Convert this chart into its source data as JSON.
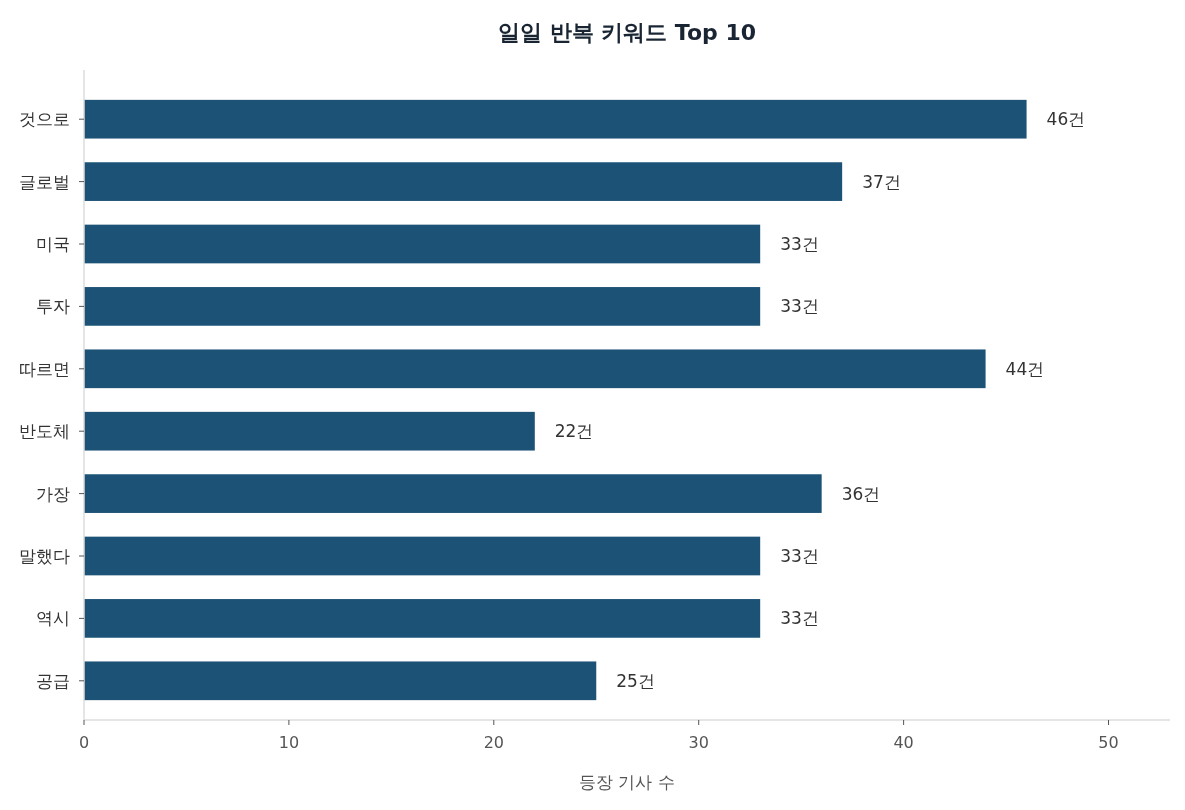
{
  "chart_data": {
    "type": "bar",
    "orientation": "horizontal",
    "title": "일일 반복 키워드 Top 10",
    "xlabel": "등장 기사 수",
    "categories": [
      "것으로",
      "글로벌",
      "미국",
      "투자",
      "따르면",
      "반도체",
      "가장",
      "말했다",
      "역시",
      "공급"
    ],
    "values": [
      46,
      37,
      33,
      33,
      44,
      22,
      36,
      33,
      33,
      25
    ],
    "value_labels": [
      "46건",
      "37건",
      "33건",
      "33건",
      "44건",
      "22건",
      "36건",
      "33건",
      "33건",
      "25건"
    ],
    "color": "#1c5276",
    "xlim": [
      0,
      53
    ],
    "xticks": [
      0,
      10,
      20,
      30,
      40,
      50
    ]
  }
}
